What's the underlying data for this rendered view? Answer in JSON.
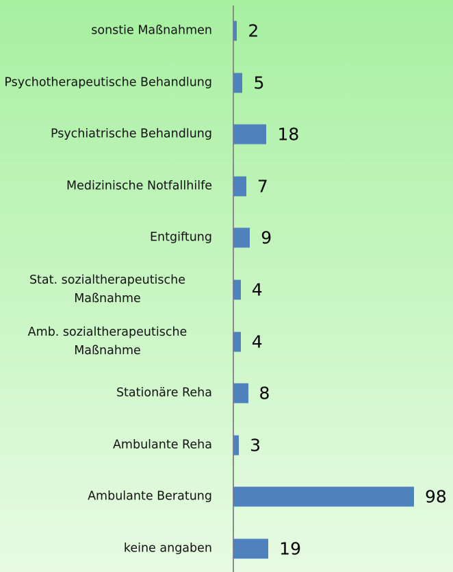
{
  "chart_data": {
    "type": "bar",
    "orientation": "horizontal",
    "color": "#4f81bd",
    "categories": [
      "sonstie Maßnahmen",
      "Psychotherapeutische Behandlung",
      "Psychiatrische Behandlung",
      "Medizinische Notfallhilfe",
      "Entgiftung",
      "Stat. sozialtherapeutische Maßnahme",
      "Amb. sozialtherapeutische Maßnahme",
      "Stationäre Reha",
      "Ambulante Reha",
      "Ambulante Beratung",
      "keine angaben"
    ],
    "values": [
      2,
      5,
      18,
      7,
      9,
      4,
      4,
      8,
      3,
      98,
      19
    ]
  }
}
